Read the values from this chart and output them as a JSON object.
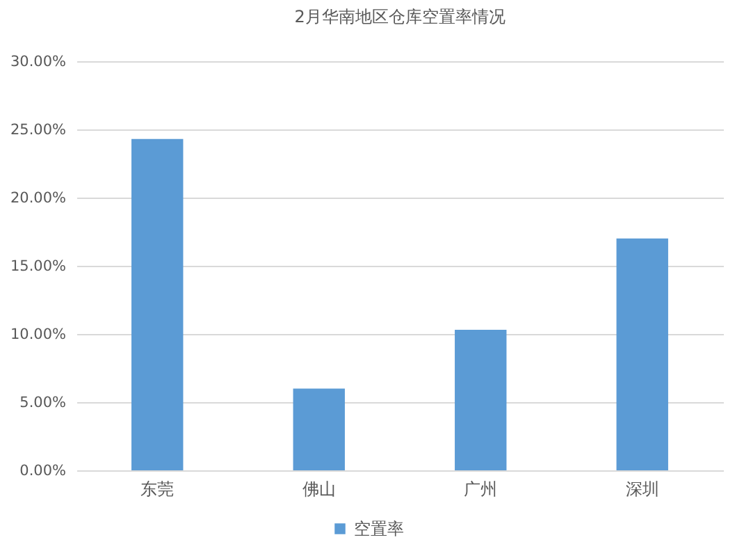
{
  "chart_data": {
    "type": "bar",
    "title": "2月华南地区仓库空置率情况",
    "categories": [
      "东莞",
      "佛山",
      "广州",
      "深圳"
    ],
    "series": [
      {
        "name": "空置率",
        "color": "#5b9bd5",
        "values": [
          24.3,
          6.0,
          10.3,
          17.0
        ]
      }
    ],
    "ylim": [
      0,
      30
    ],
    "yticks": [
      {
        "value": 0,
        "label": "0.00%"
      },
      {
        "value": 5,
        "label": "5.00%"
      },
      {
        "value": 10,
        "label": "10.00%"
      },
      {
        "value": 15,
        "label": "15.00%"
      },
      {
        "value": 20,
        "label": "20.00%"
      },
      {
        "value": 25,
        "label": "25.00%"
      },
      {
        "value": 30,
        "label": "30.00%"
      }
    ],
    "grid": "y",
    "legend": "bottom"
  }
}
